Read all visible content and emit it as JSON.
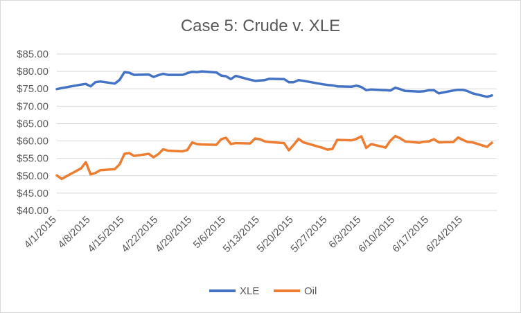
{
  "chart_data": {
    "type": "line",
    "title": "Case 5: Crude v. XLE",
    "xlabel": "",
    "ylabel": "",
    "ylim": [
      40,
      85
    ],
    "y_ticks": [
      "$40.00",
      "$45.00",
      "$50.00",
      "$55.00",
      "$60.00",
      "$65.00",
      "$70.00",
      "$75.00",
      "$80.00",
      "$85.00"
    ],
    "y_tick_values": [
      40,
      45,
      50,
      55,
      60,
      65,
      70,
      75,
      80,
      85
    ],
    "x_ticks": [
      "4/1/2015",
      "4/8/2015",
      "4/15/2015",
      "4/22/2015",
      "4/29/2015",
      "5/6/2015",
      "5/13/2015",
      "5/20/2015",
      "5/27/2015",
      "6/3/2015",
      "6/10/2015",
      "6/17/2015",
      "6/24/2015"
    ],
    "x_range": [
      "4/1/2015",
      "7/1/2015"
    ],
    "grid": true,
    "legend_position": "bottom",
    "colors": {
      "XLE": "#4472C4",
      "Oil": "#ED7D31"
    },
    "series": [
      {
        "name": "XLE",
        "x": [
          "4/1/2015",
          "4/2/2015",
          "4/6/2015",
          "4/7/2015",
          "4/8/2015",
          "4/9/2015",
          "4/10/2015",
          "4/13/2015",
          "4/14/2015",
          "4/15/2015",
          "4/16/2015",
          "4/17/2015",
          "4/20/2015",
          "4/21/2015",
          "4/22/2015",
          "4/23/2015",
          "4/24/2015",
          "4/27/2015",
          "4/28/2015",
          "4/29/2015",
          "4/30/2015",
          "5/1/2015",
          "5/4/2015",
          "5/5/2015",
          "5/6/2015",
          "5/7/2015",
          "5/8/2015",
          "5/11/2015",
          "5/12/2015",
          "5/13/2015",
          "5/14/2015",
          "5/15/2015",
          "5/18/2015",
          "5/19/2015",
          "5/20/2015",
          "5/21/2015",
          "5/22/2015",
          "5/26/2015",
          "5/27/2015",
          "5/28/2015",
          "5/29/2015",
          "6/1/2015",
          "6/2/2015",
          "6/3/2015",
          "6/4/2015",
          "6/5/2015",
          "6/8/2015",
          "6/9/2015",
          "6/10/2015",
          "6/11/2015",
          "6/12/2015",
          "6/15/2015",
          "6/16/2015",
          "6/17/2015",
          "6/18/2015",
          "6/19/2015",
          "6/22/2015",
          "6/23/2015",
          "6/24/2015",
          "6/25/2015",
          "6/26/2015",
          "6/29/2015",
          "6/30/2015"
        ],
        "values": [
          74.9,
          75.2,
          76.2,
          76.4,
          75.7,
          76.9,
          77.1,
          76.5,
          77.6,
          79.8,
          79.6,
          79.0,
          79.1,
          78.4,
          78.9,
          79.3,
          79.0,
          79.0,
          79.5,
          79.9,
          79.8,
          80.0,
          79.7,
          78.8,
          78.6,
          77.8,
          78.7,
          77.6,
          77.3,
          77.4,
          77.5,
          77.9,
          77.8,
          76.9,
          76.9,
          77.5,
          77.3,
          76.3,
          76.1,
          76.0,
          75.7,
          75.6,
          75.9,
          75.5,
          74.6,
          74.8,
          74.6,
          74.5,
          75.3,
          74.9,
          74.4,
          74.2,
          74.3,
          74.6,
          74.6,
          73.7,
          74.5,
          74.7,
          74.7,
          74.3,
          73.7,
          72.7,
          73.1
        ]
      },
      {
        "name": "Oil",
        "x": [
          "4/1/2015",
          "4/2/2015",
          "4/6/2015",
          "4/7/2015",
          "4/8/2015",
          "4/9/2015",
          "4/10/2015",
          "4/13/2015",
          "4/14/2015",
          "4/15/2015",
          "4/16/2015",
          "4/17/2015",
          "4/20/2015",
          "4/21/2015",
          "4/22/2015",
          "4/23/2015",
          "4/24/2015",
          "4/27/2015",
          "4/28/2015",
          "4/29/2015",
          "4/30/2015",
          "5/1/2015",
          "5/4/2015",
          "5/5/2015",
          "5/6/2015",
          "5/7/2015",
          "5/8/2015",
          "5/11/2015",
          "5/12/2015",
          "5/13/2015",
          "5/14/2015",
          "5/15/2015",
          "5/18/2015",
          "5/19/2015",
          "5/20/2015",
          "5/21/2015",
          "5/22/2015",
          "5/26/2015",
          "5/27/2015",
          "5/28/2015",
          "5/29/2015",
          "6/1/2015",
          "6/2/2015",
          "6/3/2015",
          "6/4/2015",
          "6/5/2015",
          "6/8/2015",
          "6/9/2015",
          "6/10/2015",
          "6/11/2015",
          "6/12/2015",
          "6/15/2015",
          "6/16/2015",
          "6/17/2015",
          "6/18/2015",
          "6/19/2015",
          "6/22/2015",
          "6/23/2015",
          "6/24/2015",
          "6/25/2015",
          "6/26/2015",
          "6/29/2015",
          "6/30/2015"
        ],
        "values": [
          50.1,
          49.1,
          52.1,
          53.9,
          50.4,
          50.8,
          51.6,
          51.9,
          53.3,
          56.3,
          56.5,
          55.7,
          56.3,
          55.3,
          56.2,
          57.6,
          57.2,
          57.0,
          57.4,
          59.6,
          59.1,
          59.0,
          58.9,
          60.5,
          60.9,
          59.1,
          59.4,
          59.3,
          60.7,
          60.5,
          59.9,
          59.7,
          59.4,
          57.3,
          58.9,
          60.6,
          59.6,
          58.0,
          57.5,
          57.7,
          60.3,
          60.2,
          60.6,
          61.3,
          58.0,
          59.1,
          58.1,
          60.1,
          61.4,
          60.8,
          59.9,
          59.5,
          59.8,
          59.9,
          60.5,
          59.6,
          59.7,
          61.0,
          60.3,
          59.7,
          59.6,
          58.3,
          59.5
        ]
      }
    ]
  }
}
